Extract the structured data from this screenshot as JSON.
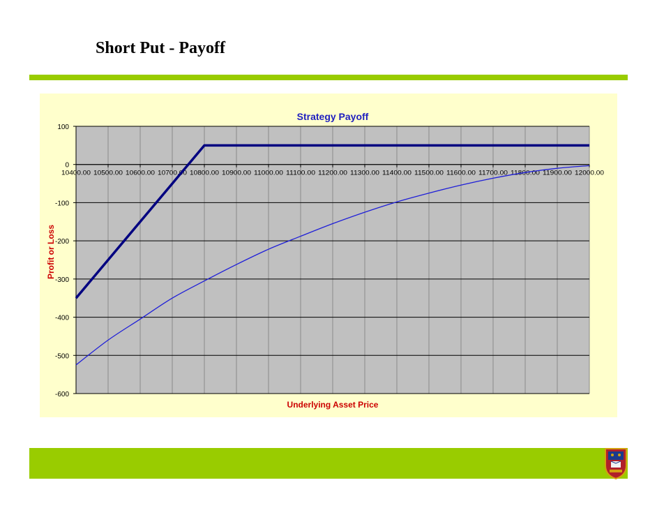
{
  "slide": {
    "title": "Short Put - Payoff",
    "accent_color": "#99cc00"
  },
  "logo": {
    "icon": "university-crest-icon"
  },
  "chart_data": {
    "type": "line",
    "title": "Strategy Payoff",
    "xlabel": "Underlying Asset Price",
    "ylabel": "Profit or Loss",
    "x": [
      10400,
      10500,
      10600,
      10700,
      10800,
      10900,
      11000,
      11100,
      11200,
      11300,
      11400,
      11500,
      11600,
      11700,
      11800,
      11900,
      12000
    ],
    "x_tick_labels": [
      "10400.00",
      "10500.00",
      "10600.00",
      "10700.00",
      "10800.00",
      "10900.00",
      "11000.00",
      "11100.00",
      "11200.00",
      "11300.00",
      "11400.00",
      "11500.00",
      "11600.00",
      "11700.00",
      "11800.00",
      "11900.00",
      "12000.00"
    ],
    "y_ticks": [
      100,
      0,
      -100,
      -200,
      -300,
      -400,
      -500,
      -600
    ],
    "ylim": [
      -600,
      100
    ],
    "grid": true,
    "legend": "none",
    "series": [
      {
        "values": [
          -350,
          -250,
          -150,
          -50,
          50,
          50,
          50,
          50,
          50,
          50,
          50,
          50,
          50,
          50,
          50,
          50,
          50
        ],
        "color": "#000080",
        "width": "thick"
      },
      {
        "values": [
          -525,
          -460,
          -405,
          -350,
          -305,
          -262,
          -222,
          -188,
          -155,
          -125,
          -98,
          -75,
          -54,
          -36,
          -21,
          -10,
          -3
        ],
        "color": "#1f1fd8",
        "width": "thin"
      }
    ],
    "colors": {
      "plot_area": "#c0c0c0",
      "chart_area": "#ffffcc",
      "title_color": "#1f1fbf",
      "axis_label_color": "#cc0000"
    }
  }
}
